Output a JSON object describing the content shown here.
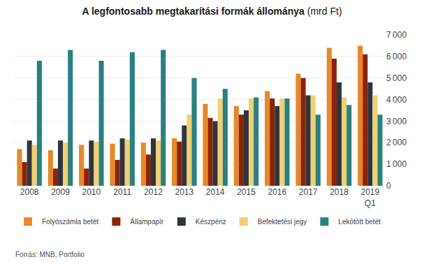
{
  "chart_data": {
    "type": "bar",
    "title": "A legfontosabb megtakarítási formák állománya",
    "subtitle": "(mrd Ft)",
    "annotations": [
      "Forrás: MNB, Portfolio"
    ],
    "categories": [
      "2008",
      "2009",
      "2010",
      "2011",
      "2012",
      "2013",
      "2014",
      "2015",
      "2016",
      "2017",
      "2018",
      "2019\nQ1"
    ],
    "series": [
      {
        "name": "Folyószámla betét",
        "color": "#E8882A",
        "values": [
          1700,
          1650,
          1900,
          1950,
          2000,
          2200,
          3800,
          3700,
          4400,
          5200,
          6400,
          6500
        ]
      },
      {
        "name": "Állampapír",
        "color": "#8B2500",
        "values": [
          1100,
          800,
          800,
          1200,
          1450,
          2050,
          3150,
          3300,
          4050,
          5000,
          5900,
          6100
        ]
      },
      {
        "name": "Készpénz",
        "color": "#2E3540",
        "values": [
          2100,
          2100,
          2100,
          2200,
          2200,
          2800,
          3000,
          3500,
          3700,
          4200,
          4800,
          4800
        ]
      },
      {
        "name": "Befektetési jegy",
        "color": "#F0D070",
        "values": [
          1900,
          2000,
          2050,
          2150,
          2100,
          3300,
          4050,
          4050,
          4050,
          4200,
          4100,
          4200
        ]
      },
      {
        "name": "Lekötött betét",
        "color": "#2A8080",
        "values": [
          5800,
          6300,
          5800,
          6200,
          6300,
          5000,
          4500,
          4100,
          4050,
          3300,
          3750,
          3300
        ]
      }
    ],
    "ylim": [
      0,
      7000
    ],
    "yticks": [
      0,
      {
        "value": 1000,
        "label": "1 000"
      },
      {
        "value": 2000,
        "label": "2 000"
      },
      {
        "value": 3000,
        "label": "3 000"
      },
      {
        "value": 4000,
        "label": "4 000"
      },
      {
        "value": 5000,
        "label": "5 000"
      },
      {
        "value": 6000,
        "label": "6 000"
      },
      {
        "value": 7000,
        "label": "7 000"
      }
    ],
    "grid": true,
    "legend": "bottom"
  }
}
